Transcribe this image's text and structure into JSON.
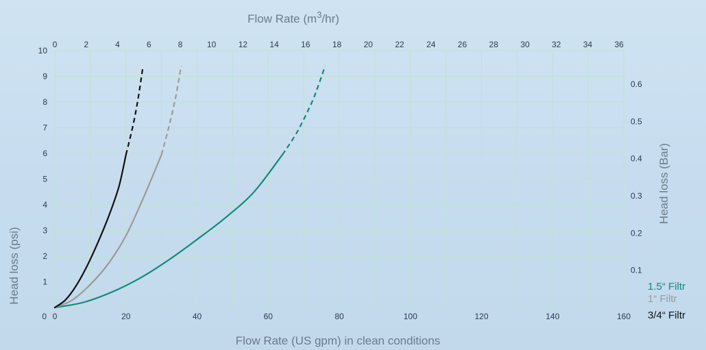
{
  "chart_data": {
    "type": "line",
    "x_bottom": {
      "label": "Flow Rate (US gpm) in clean conditions",
      "range": [
        0,
        160
      ],
      "ticks": [
        0,
        20,
        40,
        60,
        80,
        100,
        120,
        140,
        160
      ]
    },
    "x_top": {
      "label_main": "Flow Rate (m",
      "label_sup": "3",
      "label_tail": "/hr)",
      "range": [
        0,
        36.3
      ],
      "ticks": [
        0,
        2,
        4,
        6,
        8,
        10,
        12,
        14,
        16,
        18,
        20,
        22,
        24,
        26,
        28,
        30,
        32,
        34,
        36
      ]
    },
    "y_left": {
      "label": "Head loss (psi)",
      "range": [
        0,
        10
      ],
      "ticks": [
        0,
        1,
        2,
        3,
        4,
        5,
        6,
        7,
        8,
        9,
        10
      ]
    },
    "y_right": {
      "label": "Head loss (Bar)",
      "range": [
        0,
        0.69
      ],
      "ticks": [
        0.1,
        0.2,
        0.3,
        0.4,
        0.5,
        0.6
      ]
    },
    "grid": true,
    "series": [
      {
        "name": "1.5“ Filtr",
        "color": "#0f8a7a",
        "solid": [
          [
            0,
            0
          ],
          [
            8,
            0.2
          ],
          [
            16,
            0.6
          ],
          [
            24,
            1.15
          ],
          [
            32,
            1.85
          ],
          [
            40,
            2.65
          ],
          [
            48,
            3.5
          ],
          [
            56,
            4.5
          ],
          [
            64,
            5.95
          ]
        ],
        "dashed": [
          [
            64,
            5.95
          ],
          [
            68,
            6.8
          ],
          [
            72,
            7.9
          ],
          [
            74,
            8.6
          ],
          [
            76,
            9.4
          ]
        ]
      },
      {
        "name": "1“  Filtr",
        "color": "#9a9a9a",
        "solid": [
          [
            0,
            0
          ],
          [
            5,
            0.3
          ],
          [
            10,
            0.9
          ],
          [
            15,
            1.7
          ],
          [
            20,
            2.8
          ],
          [
            25,
            4.3
          ],
          [
            30,
            5.95
          ]
        ],
        "dashed": [
          [
            30,
            5.95
          ],
          [
            32,
            7.0
          ],
          [
            34,
            8.2
          ],
          [
            35.5,
            9.4
          ]
        ]
      },
      {
        "name": "3/4“ Filtr",
        "color": "#111111",
        "solid": [
          [
            0,
            0
          ],
          [
            3,
            0.3
          ],
          [
            6,
            0.85
          ],
          [
            9,
            1.6
          ],
          [
            12,
            2.5
          ],
          [
            15,
            3.5
          ],
          [
            18,
            4.7
          ],
          [
            20,
            5.95
          ]
        ],
        "dashed": [
          [
            20,
            5.95
          ],
          [
            22,
            7.1
          ],
          [
            23.5,
            8.2
          ],
          [
            24.8,
            9.4
          ]
        ]
      }
    ]
  }
}
